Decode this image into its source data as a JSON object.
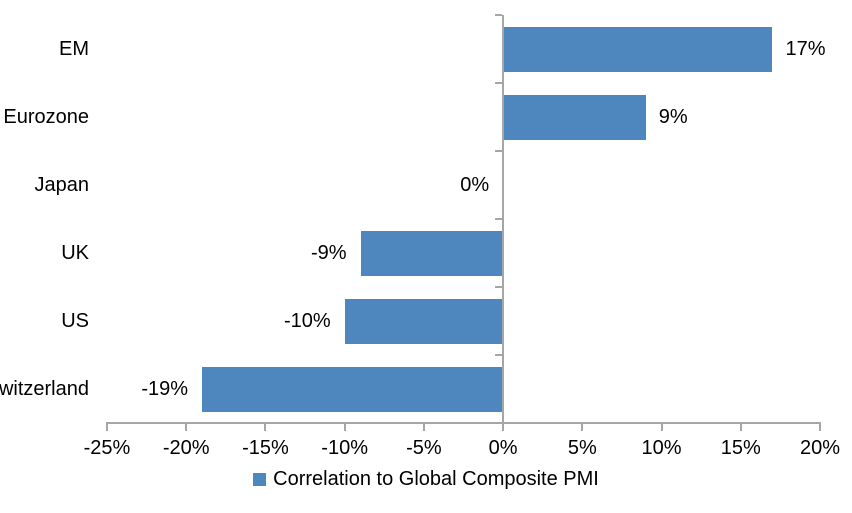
{
  "chart_data": {
    "type": "bar",
    "orientation": "horizontal",
    "title": "",
    "xlabel": "",
    "ylabel": "",
    "categories": [
      "EM",
      "Eurozone",
      "Japan",
      "UK",
      "US",
      "Switzerland"
    ],
    "values": [
      17,
      9,
      0,
      -9,
      -10,
      -19
    ],
    "value_labels": [
      "17%",
      "9%",
      "0%",
      "-9%",
      "-10%",
      "-19%"
    ],
    "xlim": [
      -25,
      20
    ],
    "x_ticks": [
      -25,
      -20,
      -15,
      -10,
      -5,
      0,
      5,
      10,
      15,
      20
    ],
    "x_tick_labels": [
      "-25%",
      "-20%",
      "-15%",
      "-10%",
      "-5%",
      "0%",
      "5%",
      "10%",
      "15%",
      "20%"
    ],
    "grid": false,
    "legend_position": "bottom-center",
    "legend": "Correlation to Global Composite PMI",
    "colors": {
      "bar": "#4E86BE",
      "axis": "#A6A6A6",
      "text": "#000000",
      "background": "#FFFFFF"
    }
  }
}
